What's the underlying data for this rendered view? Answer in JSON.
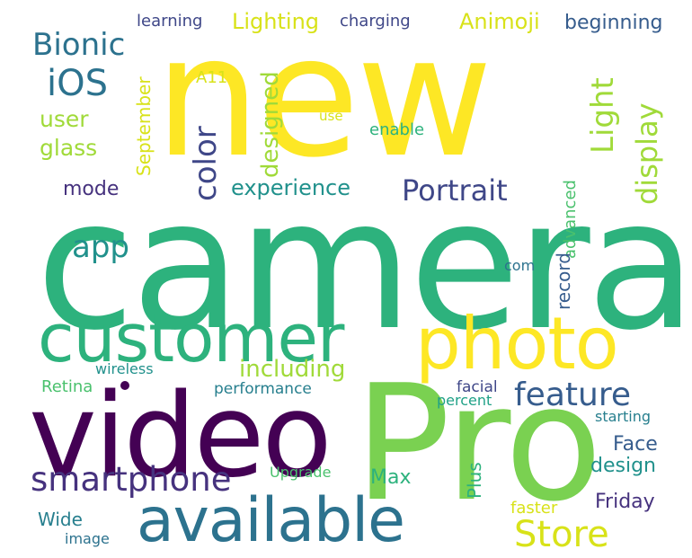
{
  "palette": {
    "yellow": "#fde725",
    "light_yellow": "#d8e219",
    "yellow_green": "#a0da39",
    "lime": "#7ad151",
    "green": "#4ac16d",
    "green_teal": "#2db27d",
    "teal": "#1fa187",
    "teal_blue": "#21918c",
    "blue_teal": "#277f8e",
    "steel_blue": "#2c728e",
    "slate_blue": "#365c8d",
    "dark_blue": "#3f4788",
    "indigo": "#46327e",
    "deep_purple": "#440154"
  },
  "words": [
    {
      "text": "new",
      "color": "#fde725"
    },
    {
      "text": "camera",
      "color": "#2db27d"
    },
    {
      "text": "video",
      "color": "#440154"
    },
    {
      "text": "Pro",
      "color": "#7ad151"
    },
    {
      "text": "customer",
      "color": "#2db27d"
    },
    {
      "text": "photo",
      "color": "#fde725"
    },
    {
      "text": "available",
      "color": "#2c728e"
    },
    {
      "text": "smartphone",
      "color": "#46327e"
    },
    {
      "text": "feature",
      "color": "#365c8d"
    },
    {
      "text": "Store",
      "color": "#d8e219"
    },
    {
      "text": "Portrait",
      "color": "#3f4788"
    },
    {
      "text": "experience",
      "color": "#21918c"
    },
    {
      "text": "color",
      "color": "#3f4788"
    },
    {
      "text": "display",
      "color": "#a0da39"
    },
    {
      "text": "Light",
      "color": "#a0da39"
    },
    {
      "text": "iOS",
      "color": "#2c728e"
    },
    {
      "text": "Bionic",
      "color": "#2c728e"
    },
    {
      "text": "app",
      "color": "#21918c"
    },
    {
      "text": "including",
      "color": "#a0da39"
    },
    {
      "text": "designed",
      "color": "#a0da39"
    },
    {
      "text": "user",
      "color": "#a0da39"
    },
    {
      "text": "glass",
      "color": "#a0da39"
    },
    {
      "text": "mode",
      "color": "#46327e"
    },
    {
      "text": "Lighting",
      "color": "#d8e219"
    },
    {
      "text": "Animoji",
      "color": "#d8e219"
    },
    {
      "text": "beginning",
      "color": "#365c8d"
    },
    {
      "text": "learning",
      "color": "#3f4788"
    },
    {
      "text": "charging",
      "color": "#3f4788"
    },
    {
      "text": "A11",
      "color": "#d8e219"
    },
    {
      "text": "use",
      "color": "#d8e219"
    },
    {
      "text": "enable",
      "color": "#2db27d"
    },
    {
      "text": "September",
      "color": "#d8e219"
    },
    {
      "text": "advanced",
      "color": "#4ac16d"
    },
    {
      "text": "record",
      "color": "#365c8d"
    },
    {
      "text": "com",
      "color": "#2c728e"
    },
    {
      "text": "Face",
      "color": "#365c8d"
    },
    {
      "text": "design",
      "color": "#21918c"
    },
    {
      "text": "Friday",
      "color": "#46327e"
    },
    {
      "text": "Max",
      "color": "#2db27d"
    },
    {
      "text": "Plus",
      "color": "#2db27d"
    },
    {
      "text": "Upgrade",
      "color": "#4ac16d"
    },
    {
      "text": "Wide",
      "color": "#277f8e"
    },
    {
      "text": "image",
      "color": "#2c728e"
    },
    {
      "text": "faster",
      "color": "#d8e219"
    },
    {
      "text": "Retina",
      "color": "#4ac16d"
    },
    {
      "text": "wireless",
      "color": "#21918c"
    },
    {
      "text": "performance",
      "color": "#277f8e"
    },
    {
      "text": "facial",
      "color": "#3f4788"
    },
    {
      "text": "percent",
      "color": "#1fa187"
    },
    {
      "text": "starting",
      "color": "#277f8e"
    }
  ]
}
